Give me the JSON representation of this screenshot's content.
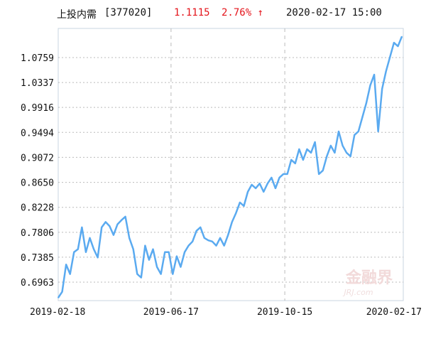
{
  "header": {
    "name": "上投内需",
    "code": "[377020]",
    "price": "1.1115",
    "change": "2.76% ↑",
    "datetime": "2020-02-17 15:00"
  },
  "watermark": "金融界 JRJ.com",
  "chart_data": {
    "type": "line",
    "title": "",
    "xlabel": "",
    "ylabel": "",
    "x_ticks": [
      "2019-02-18",
      "2019-06-17",
      "2019-10-15",
      "2020-02-17"
    ],
    "x_range": [
      "2019-02-18",
      "2020-02-17"
    ],
    "y_ticks": [
      "1.0759",
      "1.0337",
      "0.9916",
      "0.9494",
      "0.9072",
      "0.8650",
      "0.8228",
      "0.7806",
      "0.7385",
      "0.6963"
    ],
    "ylim": [
      0.6625,
      1.1115
    ],
    "grid": true,
    "line_color": "#5aaaf0",
    "series": [
      {
        "values": [
          0.67,
          0.68,
          0.726,
          0.71,
          0.747,
          0.752,
          0.789,
          0.747,
          0.771,
          0.752,
          0.738,
          0.789,
          0.798,
          0.791,
          0.776,
          0.794,
          0.801,
          0.807,
          0.771,
          0.752,
          0.71,
          0.704,
          0.758,
          0.734,
          0.752,
          0.722,
          0.71,
          0.747,
          0.747,
          0.71,
          0.74,
          0.722,
          0.747,
          0.758,
          0.765,
          0.783,
          0.789,
          0.771,
          0.767,
          0.765,
          0.758,
          0.771,
          0.758,
          0.776,
          0.798,
          0.813,
          0.831,
          0.825,
          0.849,
          0.861,
          0.855,
          0.863,
          0.849,
          0.863,
          0.873,
          0.855,
          0.873,
          0.879,
          0.879,
          0.903,
          0.897,
          0.921,
          0.903,
          0.921,
          0.915,
          0.933,
          0.879,
          0.885,
          0.909,
          0.927,
          0.915,
          0.951,
          0.927,
          0.915,
          0.909,
          0.945,
          0.951,
          0.975,
          0.999,
          1.029,
          1.047,
          0.951,
          1.023,
          1.053,
          1.077,
          1.101,
          1.095,
          1.1115
        ]
      }
    ]
  }
}
